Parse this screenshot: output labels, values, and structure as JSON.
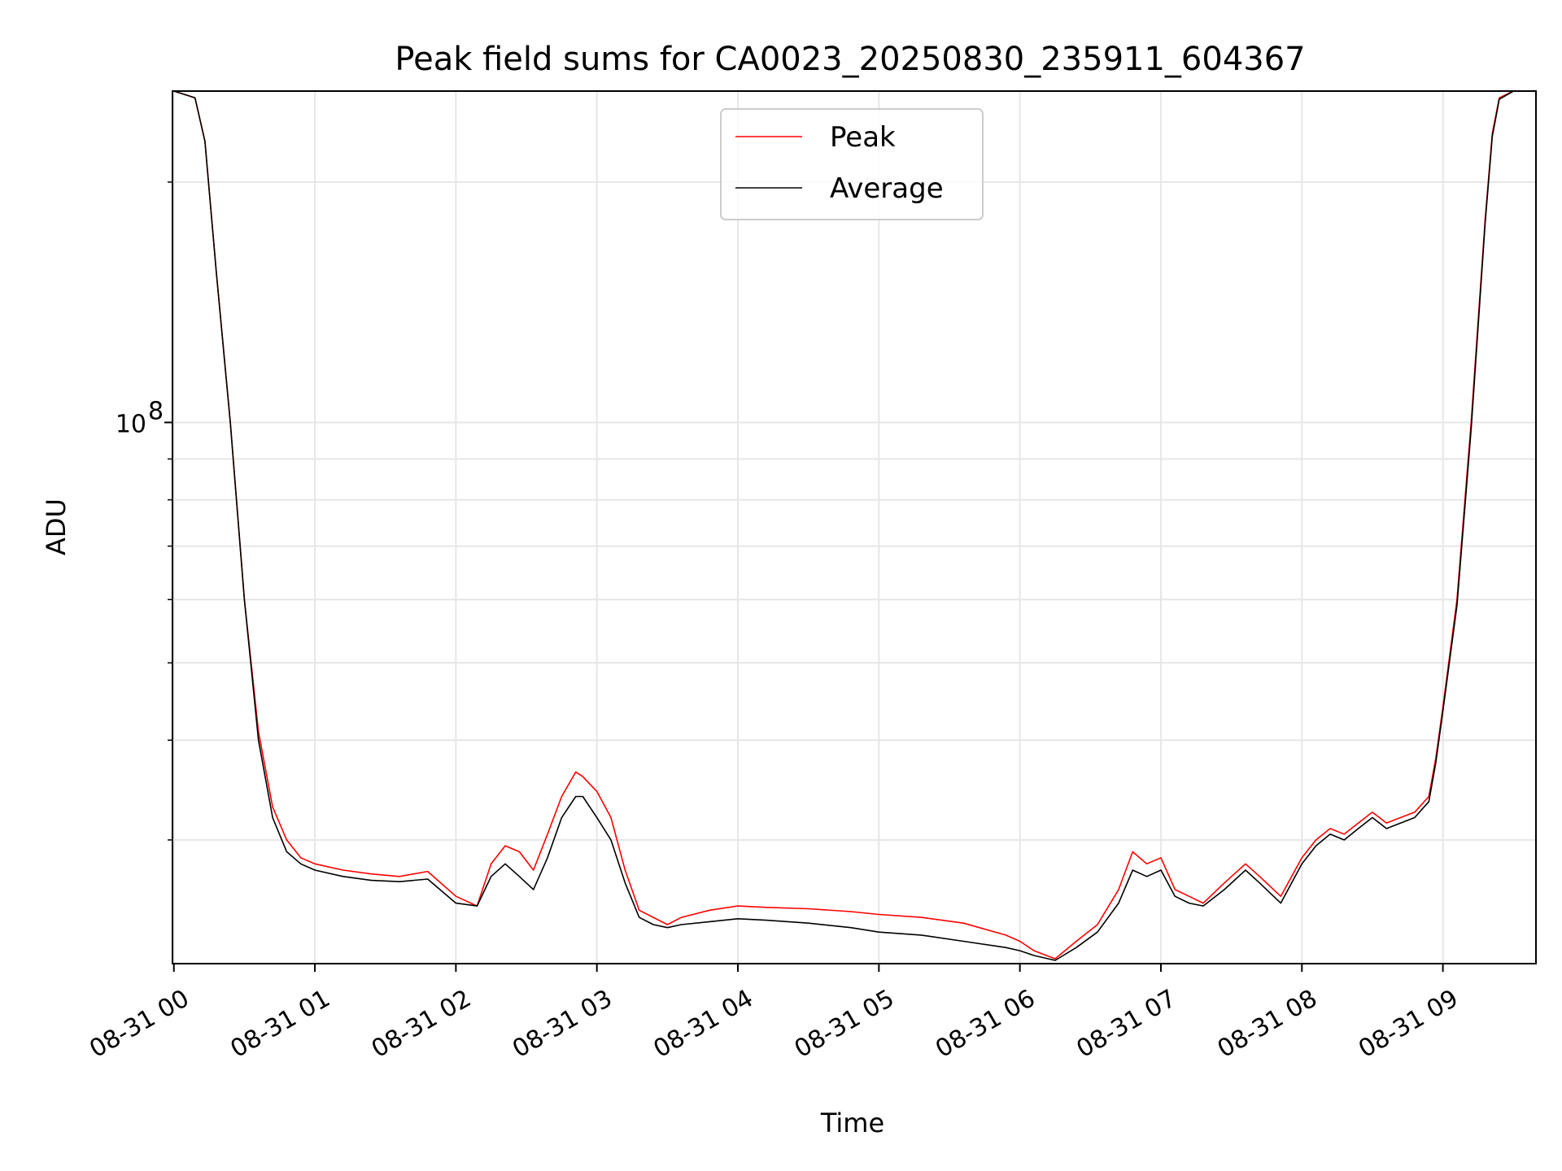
{
  "chart_data": {
    "type": "line",
    "title": "Peak field sums for CA0023_20250830_235911_604367",
    "xlabel": "Time",
    "ylabel": "ADU",
    "y_scale": "log",
    "grid": true,
    "legend_position": "upper center",
    "x_tick_labels": [
      "08-31 00",
      "08-31 01",
      "08-31 02",
      "08-31 03",
      "08-31 04",
      "08-31 05",
      "08-31 06",
      "08-31 07",
      "08-31 08",
      "08-31 09"
    ],
    "x_tick_hours": [
      0,
      1,
      2,
      3,
      4,
      5,
      6,
      7,
      8,
      9
    ],
    "xlim_hours": [
      -0.01,
      9.66
    ],
    "ylim": [
      21000000,
      260000000
    ],
    "y_major_ticks": [
      {
        "value": 100000000,
        "label_base": "10",
        "label_exp": "8"
      }
    ],
    "y_minor_ticks": [
      30000000,
      40000000,
      50000000,
      60000000,
      70000000,
      80000000,
      90000000,
      200000000
    ],
    "series": [
      {
        "name": "Peak",
        "color": "#ff0000",
        "x_hours": [
          0.0,
          0.15,
          0.22,
          0.3,
          0.4,
          0.5,
          0.6,
          0.7,
          0.8,
          0.9,
          1.0,
          1.2,
          1.4,
          1.6,
          1.8,
          2.0,
          2.15,
          2.25,
          2.35,
          2.45,
          2.55,
          2.65,
          2.75,
          2.85,
          2.9,
          3.0,
          3.1,
          3.2,
          3.3,
          3.4,
          3.5,
          3.6,
          3.8,
          4.0,
          4.2,
          4.5,
          4.8,
          5.0,
          5.3,
          5.6,
          5.9,
          6.0,
          6.1,
          6.25,
          6.4,
          6.55,
          6.7,
          6.8,
          6.9,
          7.0,
          7.1,
          7.2,
          7.3,
          7.45,
          7.6,
          7.7,
          7.85,
          8.0,
          8.1,
          8.2,
          8.3,
          8.4,
          8.5,
          8.6,
          8.7,
          8.8,
          8.9,
          8.95,
          9.0,
          9.1,
          9.2,
          9.3,
          9.35,
          9.4,
          9.5,
          9.6
        ],
        "values": [
          260000000,
          255000000,
          225000000,
          155000000,
          100000000,
          60000000,
          41000000,
          33000000,
          30000000,
          28500000,
          28000000,
          27500000,
          27200000,
          27000000,
          27400000,
          25500000,
          24800000,
          28000000,
          29500000,
          29000000,
          27500000,
          30500000,
          34000000,
          36500000,
          36000000,
          34500000,
          32000000,
          27500000,
          24500000,
          24000000,
          23500000,
          24000000,
          24500000,
          24800000,
          24700000,
          24600000,
          24400000,
          24200000,
          24000000,
          23600000,
          22800000,
          22400000,
          21800000,
          21300000,
          22400000,
          23500000,
          26000000,
          29000000,
          28000000,
          28500000,
          26000000,
          25500000,
          25000000,
          26500000,
          28000000,
          27000000,
          25500000,
          28500000,
          30000000,
          31000000,
          30500000,
          31500000,
          32500000,
          31500000,
          32000000,
          32500000,
          34000000,
          38000000,
          44000000,
          60000000,
          100000000,
          180000000,
          230000000,
          255000000,
          260000000,
          260000000
        ]
      },
      {
        "name": "Average",
        "color": "#000000",
        "x_hours": [
          0.0,
          0.15,
          0.22,
          0.3,
          0.4,
          0.5,
          0.6,
          0.7,
          0.8,
          0.9,
          1.0,
          1.2,
          1.4,
          1.6,
          1.8,
          2.0,
          2.15,
          2.25,
          2.35,
          2.45,
          2.55,
          2.65,
          2.75,
          2.85,
          2.9,
          3.0,
          3.1,
          3.2,
          3.3,
          3.4,
          3.5,
          3.6,
          3.8,
          4.0,
          4.2,
          4.5,
          4.8,
          5.0,
          5.3,
          5.6,
          5.9,
          6.0,
          6.1,
          6.25,
          6.4,
          6.55,
          6.7,
          6.8,
          6.9,
          7.0,
          7.1,
          7.2,
          7.3,
          7.45,
          7.6,
          7.7,
          7.85,
          8.0,
          8.1,
          8.2,
          8.3,
          8.4,
          8.5,
          8.6,
          8.7,
          8.8,
          8.9,
          8.95,
          9.0,
          9.1,
          9.2,
          9.3,
          9.35,
          9.4,
          9.5,
          9.6
        ],
        "values": [
          260000000,
          255000000,
          225000000,
          155000000,
          100000000,
          60000000,
          40000000,
          32000000,
          29000000,
          28000000,
          27500000,
          27000000,
          26700000,
          26600000,
          26800000,
          25000000,
          24800000,
          27000000,
          28000000,
          27000000,
          26000000,
          28500000,
          32000000,
          34000000,
          34000000,
          32000000,
          30000000,
          26500000,
          24000000,
          23500000,
          23300000,
          23500000,
          23700000,
          23900000,
          23800000,
          23600000,
          23300000,
          23000000,
          22800000,
          22400000,
          22000000,
          21800000,
          21500000,
          21200000,
          22000000,
          23000000,
          25000000,
          27500000,
          27000000,
          27500000,
          25500000,
          25000000,
          24800000,
          26000000,
          27500000,
          26500000,
          25000000,
          28000000,
          29500000,
          30500000,
          30000000,
          31000000,
          32000000,
          31000000,
          31500000,
          32000000,
          33500000,
          37500000,
          43500000,
          59000000,
          98000000,
          178000000,
          228000000,
          254000000,
          260000000,
          260000000
        ]
      }
    ]
  }
}
